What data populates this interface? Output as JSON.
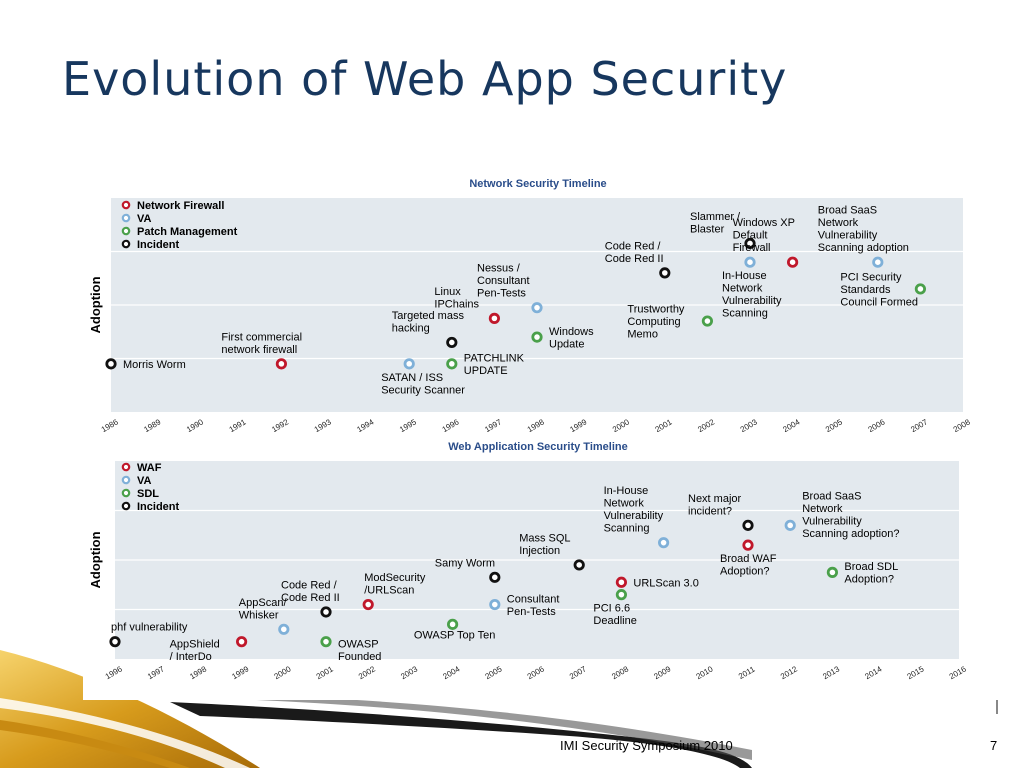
{
  "slide": {
    "title": "Evolution of Web App Security",
    "footer": "IMI Security Symposium 2010",
    "page_number": "7"
  },
  "colors": {
    "title": "#17375e",
    "chart_title": "#2a4d8a",
    "plot_bg": "#e3e9ee",
    "grid": "#ffffff",
    "red": "#c0182b",
    "blue": "#7fb0d8",
    "green": "#4aa04a",
    "black": "#111111",
    "gold": "#e0aa2a"
  },
  "chart_data": [
    {
      "type": "scatter",
      "title": "Network Security Timeline",
      "ylabel": "Adoption",
      "xlabel": "",
      "xlim": [
        1986,
        2008
      ],
      "ylim": [
        0,
        4
      ],
      "categories": [
        "1986",
        "1989",
        "1990",
        "1991",
        "1992",
        "1993",
        "1994",
        "1995",
        "1996",
        "1997",
        "1998",
        "1999",
        "2000",
        "2001",
        "2002",
        "2003",
        "2004",
        "2005",
        "2006",
        "2007",
        "2008"
      ],
      "legend": [
        {
          "name": "Network Firewall",
          "color": "red"
        },
        {
          "name": "VA",
          "color": "blue"
        },
        {
          "name": "Patch Management",
          "color": "green"
        },
        {
          "name": "Incident",
          "color": "black"
        }
      ],
      "legend_position": "top-left",
      "grid": true,
      "points": [
        {
          "cat": "1986",
          "y": 0.9,
          "series": "Incident",
          "label": [
            "Morris Worm"
          ],
          "lpos": "right"
        },
        {
          "cat": "1992",
          "y": 0.9,
          "series": "Network Firewall",
          "label": [
            "First commercial",
            "network firewall"
          ],
          "lpos": "above"
        },
        {
          "cat": "1995",
          "y": 0.9,
          "series": "VA",
          "label": [
            "SATAN / ISS",
            "Security Scanner"
          ],
          "lpos": "below"
        },
        {
          "cat": "1996",
          "y": 1.3,
          "series": "Incident",
          "label": [
            "Targeted mass",
            "hacking"
          ],
          "lpos": "above"
        },
        {
          "cat": "1996",
          "y": 0.9,
          "series": "Patch Management",
          "label": [
            "PATCHLINK",
            "UPDATE"
          ],
          "lpos": "right"
        },
        {
          "cat": "1997",
          "y": 1.75,
          "series": "Network Firewall",
          "label": [
            "Linux",
            "IPChains"
          ],
          "lpos": "above"
        },
        {
          "cat": "1998",
          "y": 1.95,
          "series": "VA",
          "label": [
            "Nessus /",
            "Consultant",
            "Pen-Tests"
          ],
          "lpos": "above"
        },
        {
          "cat": "1998",
          "y": 1.4,
          "series": "Patch Management",
          "label": [
            "Windows",
            "Update"
          ],
          "lpos": "right"
        },
        {
          "cat": "2001",
          "y": 2.6,
          "series": "Incident",
          "label": [
            "Code Red /",
            "Code Red II"
          ],
          "lpos": "above"
        },
        {
          "cat": "2002",
          "y": 1.7,
          "series": "Patch Management",
          "label": [
            "Trustworthy",
            "Computing",
            "Memo"
          ],
          "lpos": "left"
        },
        {
          "cat": "2003",
          "y": 3.15,
          "series": "Incident",
          "label": [
            "Slammer /",
            "Blaster"
          ],
          "lpos": "above"
        },
        {
          "cat": "2003",
          "y": 2.8,
          "series": "VA",
          "label": [
            "In-House",
            "Network",
            "Vulnerability",
            "Scanning"
          ],
          "lpos": "below"
        },
        {
          "cat": "2004",
          "y": 2.8,
          "series": "Network Firewall",
          "label": [
            "Windows XP",
            "Default",
            "Firewall"
          ],
          "lpos": "above"
        },
        {
          "cat": "2006",
          "y": 2.8,
          "series": "VA",
          "label": [
            "Broad SaaS",
            "Network",
            "Vulnerability",
            "Scanning adoption"
          ],
          "lpos": "above"
        },
        {
          "cat": "2007",
          "y": 2.3,
          "series": "Patch Management",
          "label": [
            "PCI Security",
            "Standards",
            "Council Formed"
          ],
          "lpos": "left"
        }
      ]
    },
    {
      "type": "scatter",
      "title": "Web Application Security Timeline",
      "ylabel": "Adoption",
      "xlabel": "",
      "xlim": [
        1996,
        2016
      ],
      "ylim": [
        0,
        4
      ],
      "categories": [
        "1996",
        "1997",
        "1998",
        "1999",
        "2000",
        "2001",
        "2002",
        "2003",
        "2004",
        "2005",
        "2006",
        "2007",
        "2008",
        "2009",
        "2010",
        "2011",
        "2012",
        "2013",
        "2014",
        "2015",
        "2016"
      ],
      "legend": [
        {
          "name": "WAF",
          "color": "red"
        },
        {
          "name": "VA",
          "color": "blue"
        },
        {
          "name": "SDL",
          "color": "green"
        },
        {
          "name": "Incident",
          "color": "black"
        }
      ],
      "legend_position": "top-left",
      "grid": true,
      "points": [
        {
          "cat": "1996",
          "y": 0.35,
          "series": "Incident",
          "label": [
            "phf vulnerability"
          ],
          "lpos": "above-right"
        },
        {
          "cat": "1999",
          "y": 0.35,
          "series": "WAF",
          "label": [
            "AppShield",
            "/ InterDo"
          ],
          "lpos": "below-left"
        },
        {
          "cat": "2000",
          "y": 0.6,
          "series": "VA",
          "label": [
            "AppScan/",
            "Whisker"
          ],
          "lpos": "above-left"
        },
        {
          "cat": "2001",
          "y": 0.35,
          "series": "SDL",
          "label": [
            "OWASP",
            "Founded"
          ],
          "lpos": "below-right"
        },
        {
          "cat": "2001",
          "y": 0.95,
          "series": "Incident",
          "label": [
            "Code Red /",
            "Code Red II"
          ],
          "lpos": "above-left"
        },
        {
          "cat": "2002",
          "y": 1.1,
          "series": "WAF",
          "label": [
            "ModSecurity",
            "/URLScan"
          ],
          "lpos": "above-right"
        },
        {
          "cat": "2004",
          "y": 0.7,
          "series": "SDL",
          "label": [
            "OWASP Top Ten"
          ],
          "lpos": "below-center"
        },
        {
          "cat": "2005",
          "y": 1.1,
          "series": "VA",
          "label": [
            "Consultant",
            "Pen-Tests"
          ],
          "lpos": "right"
        },
        {
          "cat": "2005",
          "y": 1.65,
          "series": "Incident",
          "label": [
            "Samy Worm"
          ],
          "lpos": "above"
        },
        {
          "cat": "2007",
          "y": 1.9,
          "series": "Incident",
          "label": [
            "Mass SQL",
            "Injection"
          ],
          "lpos": "above"
        },
        {
          "cat": "2008",
          "y": 1.55,
          "series": "WAF",
          "label": [
            "URLScan 3.0"
          ],
          "lpos": "right"
        },
        {
          "cat": "2008",
          "y": 1.3,
          "series": "SDL",
          "label": [
            "PCI 6.6",
            "Deadline"
          ],
          "lpos": "below"
        },
        {
          "cat": "2009",
          "y": 2.35,
          "series": "VA",
          "label": [
            "In-House",
            "Network",
            "Vulnerability",
            "Scanning"
          ],
          "lpos": "above"
        },
        {
          "cat": "2011",
          "y": 2.7,
          "series": "Incident",
          "label": [
            "Next major",
            "incident?"
          ],
          "lpos": "above"
        },
        {
          "cat": "2011",
          "y": 2.3,
          "series": "WAF",
          "label": [
            "Broad WAF",
            "Adoption?"
          ],
          "lpos": "below"
        },
        {
          "cat": "2012",
          "y": 2.7,
          "series": "VA",
          "label": [
            "Broad SaaS",
            "Network",
            "Vulnerability",
            "Scanning adoption?"
          ],
          "lpos": "right-up"
        },
        {
          "cat": "2013",
          "y": 1.75,
          "series": "SDL",
          "label": [
            "Broad SDL",
            "Adoption?"
          ],
          "lpos": "right"
        }
      ]
    }
  ]
}
